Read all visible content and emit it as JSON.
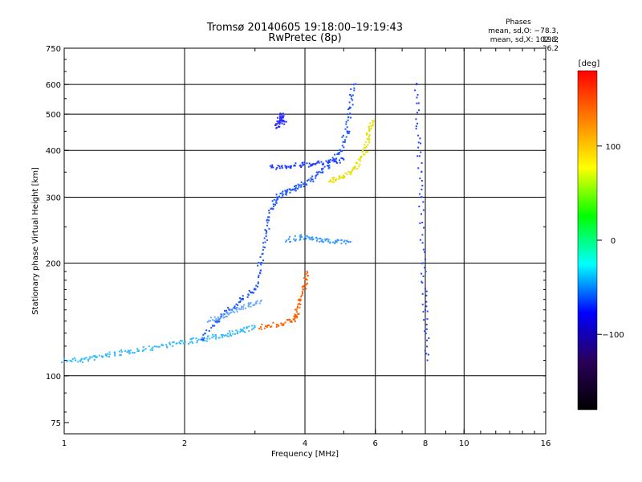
{
  "header": {
    "title_line1": "Tromsø 20140605 19:18:00–19:19:43",
    "title_line2": "RwPretec (8p)",
    "phase_heading": "Phases",
    "phase_o": "mean, sd,O: −78.3, 19.2",
    "phase_x": "mean, sd,X: 102.8, 26.2"
  },
  "colorbar": {
    "unit_label": "[deg]",
    "tick_labels": [
      "100",
      "0",
      "−100"
    ],
    "tick_values": [
      100,
      0,
      -100
    ],
    "range": [
      -180,
      180
    ],
    "colors": [
      "#000000",
      "#2a005a",
      "#0000ff",
      "#00ffff",
      "#00ff00",
      "#ffff00",
      "#ff8000",
      "#ff0000"
    ]
  },
  "chart_data": {
    "type": "scatter",
    "title": "Tromsø 20140605 19:18:00–19:19:43",
    "subtitle": "RwPretec (8p)",
    "xlabel": "Frequency [MHz]",
    "ylabel": "Stationary phase Virtual Height [km]",
    "xscale": "log",
    "yscale": "log",
    "xlim": [
      1,
      16
    ],
    "ylim": [
      70,
      750
    ],
    "xticks": [
      1,
      2,
      4,
      6,
      8,
      10,
      16
    ],
    "yticks": [
      75,
      100,
      200,
      300,
      400,
      500,
      600,
      750
    ],
    "grid_x": [
      2,
      4,
      6,
      8,
      10
    ],
    "grid_y": [
      100,
      200,
      300,
      400,
      500,
      600
    ],
    "series": [
      {
        "color": "#33bbff",
        "points": [
          [
            1.0,
            110
          ],
          [
            1.1,
            110
          ],
          [
            1.2,
            112
          ],
          [
            1.3,
            114
          ],
          [
            1.45,
            116
          ],
          [
            1.6,
            118
          ],
          [
            1.8,
            121
          ],
          [
            2.0,
            123
          ],
          [
            2.2,
            125
          ],
          [
            2.4,
            127
          ],
          [
            2.6,
            130
          ],
          [
            2.8,
            132
          ],
          [
            3.0,
            135
          ]
        ]
      },
      {
        "color": "#1b55ff",
        "points": [
          [
            2.2,
            125
          ],
          [
            2.4,
            140
          ],
          [
            2.6,
            150
          ],
          [
            2.8,
            160
          ],
          [
            3.0,
            170
          ],
          [
            3.1,
            200
          ],
          [
            3.2,
            240
          ],
          [
            3.3,
            280
          ],
          [
            3.4,
            300
          ],
          [
            3.6,
            310
          ],
          [
            3.8,
            318
          ],
          [
            4.0,
            326
          ],
          [
            4.3,
            345
          ],
          [
            4.6,
            365
          ],
          [
            4.9,
            400
          ],
          [
            5.1,
            450
          ],
          [
            5.2,
            520
          ],
          [
            5.3,
            600
          ]
        ]
      },
      {
        "color": "#1e3cff",
        "points": [
          [
            3.3,
            360
          ],
          [
            3.6,
            362
          ],
          [
            3.9,
            365
          ],
          [
            4.2,
            368
          ],
          [
            4.6,
            372
          ],
          [
            5.0,
            378
          ]
        ]
      },
      {
        "color": "#2a2aff",
        "points": [
          [
            3.4,
            460
          ],
          [
            3.45,
            480
          ],
          [
            3.5,
            500
          ],
          [
            3.55,
            470
          ]
        ]
      },
      {
        "color": "#ff6000",
        "points": [
          [
            3.1,
            135
          ],
          [
            3.4,
            137
          ],
          [
            3.7,
            140
          ],
          [
            3.8,
            145
          ],
          [
            3.9,
            160
          ],
          [
            4.0,
            175
          ],
          [
            4.05,
            190
          ]
        ]
      },
      {
        "color": "#e8e000",
        "points": [
          [
            4.6,
            330
          ],
          [
            4.9,
            338
          ],
          [
            5.2,
            350
          ],
          [
            5.5,
            375
          ],
          [
            5.7,
            410
          ],
          [
            5.8,
            450
          ],
          [
            5.9,
            480
          ]
        ]
      },
      {
        "color": "#3399ff",
        "points": [
          [
            3.6,
            230
          ],
          [
            3.9,
            235
          ],
          [
            4.2,
            232
          ],
          [
            4.5,
            230
          ],
          [
            4.8,
            228
          ],
          [
            5.2,
            228
          ]
        ]
      },
      {
        "color": "#66aaff",
        "points": [
          [
            2.3,
            140
          ],
          [
            2.5,
            145
          ],
          [
            2.7,
            150
          ],
          [
            2.9,
            155
          ],
          [
            3.1,
            158
          ]
        ]
      },
      {
        "color": "#2244ff",
        "points": [
          [
            7.6,
            600
          ],
          [
            7.7,
            420
          ],
          [
            7.8,
            300
          ],
          [
            7.9,
            200
          ],
          [
            8.0,
            150
          ],
          [
            8.1,
            110
          ]
        ]
      }
    ]
  }
}
